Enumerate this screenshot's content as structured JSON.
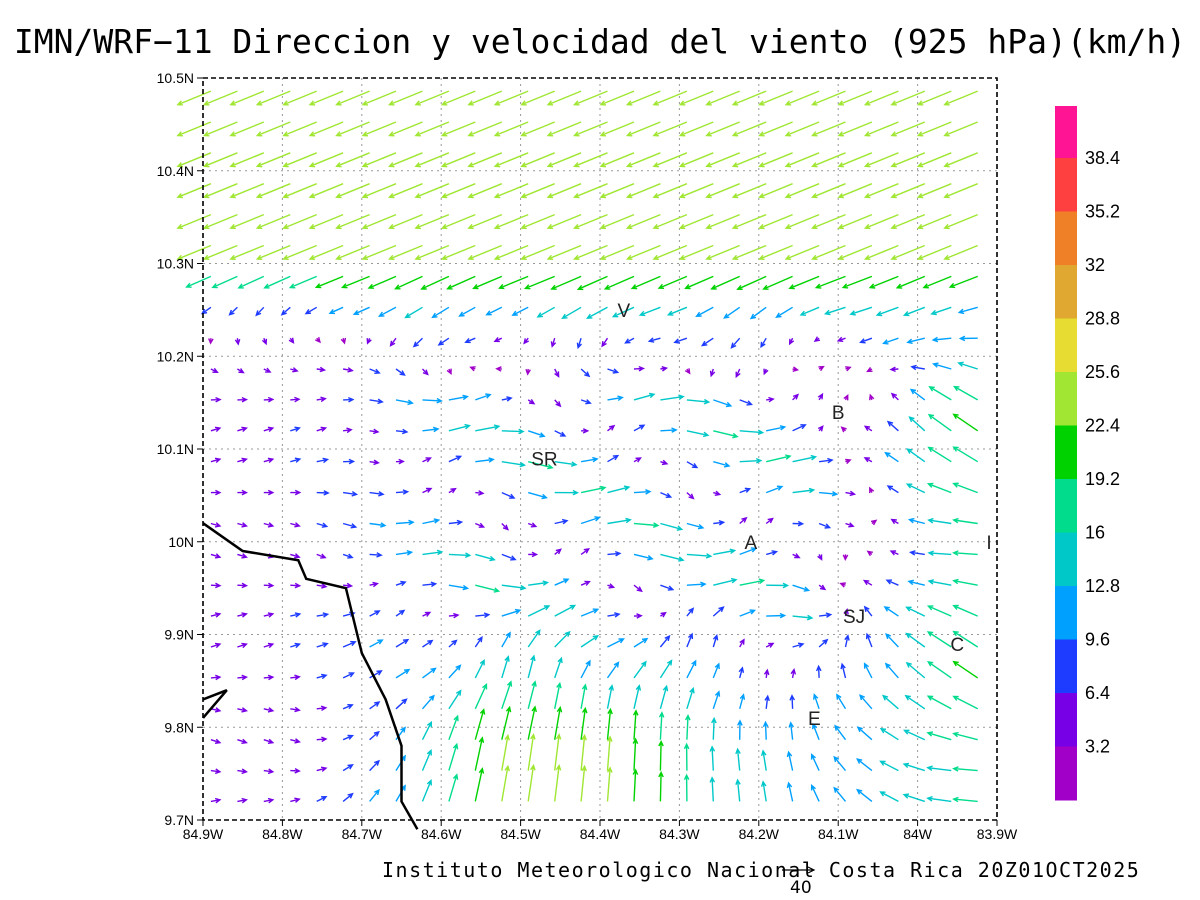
{
  "title": "IMN/WRF−11 Direccion y velocidad del viento (925 hPa)(km/h)",
  "footer": "Instituto Meteorologico Nacional Costa Rica 20Z01OCT2025",
  "reference_vector": {
    "label": "40",
    "speed": 40
  },
  "map": {
    "lon_range": [
      -84.9,
      -83.9
    ],
    "lat_range": [
      9.7,
      10.5
    ],
    "grid": true,
    "x_ticks": [
      "84.9W",
      "84.8W",
      "84.7W",
      "84.6W",
      "84.5W",
      "84.4W",
      "84.3W",
      "84.2W",
      "84.1W",
      "84W",
      "83.9W"
    ],
    "y_ticks": [
      "10.5N",
      "10.4N",
      "10.3N",
      "10.2N",
      "10.1N",
      "10N",
      "9.9N",
      "9.8N",
      "9.7N"
    ],
    "place_labels": [
      {
        "text": "V",
        "lon": -84.37,
        "lat": 10.25
      },
      {
        "text": "B",
        "lon": -84.1,
        "lat": 10.14
      },
      {
        "text": "SR",
        "lon": -84.47,
        "lat": 10.09
      },
      {
        "text": "A",
        "lon": -84.21,
        "lat": 10.0
      },
      {
        "text": "I",
        "lon": -83.91,
        "lat": 10.0
      },
      {
        "text": "SJ",
        "lon": -84.08,
        "lat": 9.92
      },
      {
        "text": "C",
        "lon": -83.95,
        "lat": 9.89
      },
      {
        "text": "E",
        "lon": -84.13,
        "lat": 9.81
      }
    ],
    "coastline": [
      [
        -84.9,
        10.02
      ],
      [
        -84.85,
        9.99
      ],
      [
        -84.78,
        9.98
      ],
      [
        -84.77,
        9.96
      ],
      [
        -84.72,
        9.95
      ],
      [
        -84.7,
        9.88
      ],
      [
        -84.67,
        9.83
      ],
      [
        -84.65,
        9.78
      ],
      [
        -84.65,
        9.72
      ],
      [
        -84.63,
        9.69
      ]
    ],
    "peninsula": [
      [
        -84.9,
        9.81
      ],
      [
        -84.87,
        9.84
      ],
      [
        -84.9,
        9.83
      ]
    ]
  },
  "colorbar": {
    "labels": [
      "38.4",
      "35.2",
      "32",
      "28.8",
      "25.6",
      "22.4",
      "19.2",
      "16",
      "12.8",
      "9.6",
      "6.4",
      "3.2"
    ],
    "colors": [
      "#ff1493",
      "#ff4040",
      "#f08028",
      "#e0a830",
      "#e6dc32",
      "#a0e632",
      "#00d200",
      "#00dc8c",
      "#00c8c8",
      "#00a0ff",
      "#1e3cff",
      "#7800e6",
      "#a000c8"
    ]
  },
  "chart_data": {
    "type": "vector-field",
    "title": "IMN/WRF−11 Direccion y velocidad del viento (925 hPa)(km/h)",
    "units": "km/h",
    "level": "925 hPa",
    "description_of_pattern": [
      "Northern third: strong NE trade winds (~16-28 km/h) blowing toward the southwest",
      "Central plateau: light, variable winds converging",
      "Southern edge: S-SE flow toward the north (~16-30 km/h)",
      "Western Pacific coast: weak winds (~3-10 km/h) toward the east"
    ]
  }
}
